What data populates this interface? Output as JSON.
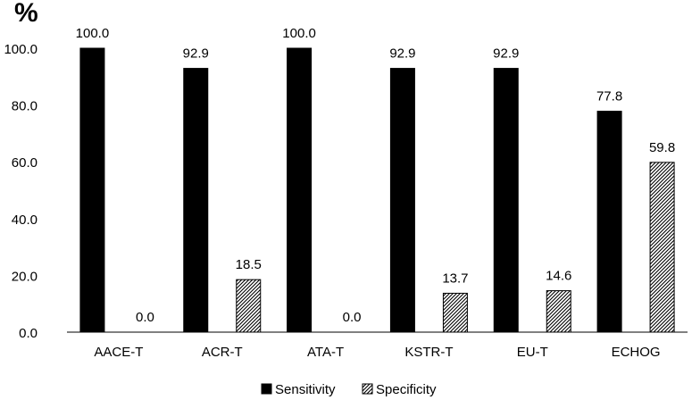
{
  "chart_data": {
    "type": "bar",
    "title": "",
    "xlabel": "",
    "ylabel": "%",
    "ylim": [
      0,
      100
    ],
    "yticks": [
      "0.0",
      "20.0",
      "40.0",
      "60.0",
      "80.0",
      "100.0"
    ],
    "grid": false,
    "categories": [
      "AACE-T",
      "ACR-T",
      "ATA-T",
      "KSTR-T",
      "EU-T",
      "ECHOG"
    ],
    "series": [
      {
        "name": "Sensitivity",
        "values": [
          100.0,
          92.9,
          100.0,
          92.9,
          92.9,
          77.8
        ],
        "labels": [
          "100.0",
          "92.9",
          "100.0",
          "92.9",
          "92.9",
          "77.8"
        ],
        "fill": "solid-black"
      },
      {
        "name": "Specificity",
        "values": [
          0.0,
          18.5,
          0.0,
          13.7,
          14.6,
          59.8
        ],
        "labels": [
          "0.0",
          "18.5",
          "0.0",
          "13.7",
          "14.6",
          "59.8"
        ],
        "fill": "diagonal-hatch"
      }
    ],
    "legend_position": "bottom-center"
  },
  "colors": {
    "bar": "#000000",
    "axis": "#000000",
    "hatch_bg": "#ffffff"
  }
}
